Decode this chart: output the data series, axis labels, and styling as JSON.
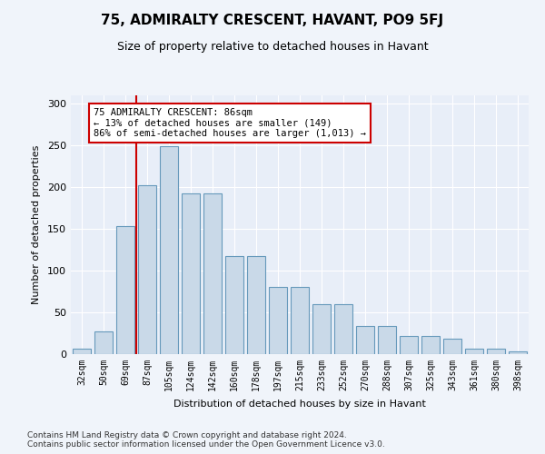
{
  "title": "75, ADMIRALTY CRESCENT, HAVANT, PO9 5FJ",
  "subtitle": "Size of property relative to detached houses in Havant",
  "xlabel": "Distribution of detached houses by size in Havant",
  "ylabel": "Number of detached properties",
  "categories": [
    "32sqm",
    "50sqm",
    "69sqm",
    "87sqm",
    "105sqm",
    "124sqm",
    "142sqm",
    "160sqm",
    "178sqm",
    "197sqm",
    "215sqm",
    "233sqm",
    "252sqm",
    "270sqm",
    "288sqm",
    "307sqm",
    "325sqm",
    "343sqm",
    "361sqm",
    "380sqm",
    "398sqm"
  ],
  "values": [
    6,
    27,
    153,
    202,
    249,
    193,
    193,
    117,
    117,
    80,
    80,
    60,
    60,
    34,
    34,
    22,
    22,
    19,
    6,
    6,
    3
  ],
  "bar_color": "#c9d9e8",
  "bar_edge_color": "#6699bb",
  "vline_x": 2.5,
  "vline_color": "#cc0000",
  "annotation_text": "75 ADMIRALTY CRESCENT: 86sqm\n← 13% of detached houses are smaller (149)\n86% of semi-detached houses are larger (1,013) →",
  "annotation_box_color": "#ffffff",
  "annotation_box_edge_color": "#cc0000",
  "ylim": [
    0,
    310
  ],
  "yticks": [
    0,
    50,
    100,
    150,
    200,
    250,
    300
  ],
  "footer_text": "Contains HM Land Registry data © Crown copyright and database right 2024.\nContains public sector information licensed under the Open Government Licence v3.0.",
  "background_color": "#f0f4fa",
  "plot_background_color": "#e8eef8"
}
